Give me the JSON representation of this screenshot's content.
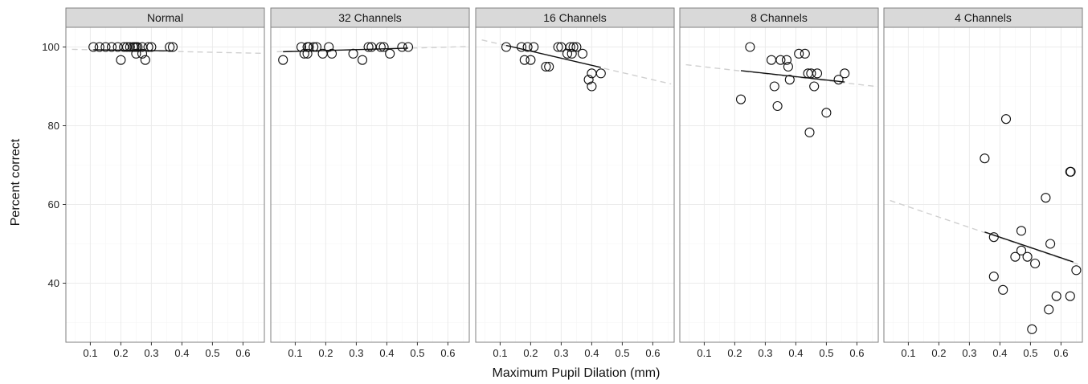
{
  "chart_data": {
    "type": "scatter",
    "xlabel": "Maximum Pupil Dilation (mm)",
    "ylabel": "Percent correct",
    "xlim": [
      0.02,
      0.67
    ],
    "ylim": [
      25,
      105
    ],
    "x_ticks": [
      "0.1",
      "0.2",
      "0.3",
      "0.4",
      "0.5",
      "0.6"
    ],
    "y_ticks": [
      "40",
      "60",
      "80",
      "100"
    ],
    "grid": true,
    "facets": [
      {
        "label": "Normal",
        "points": [
          [
            0.11,
            100
          ],
          [
            0.13,
            100
          ],
          [
            0.15,
            100
          ],
          [
            0.17,
            100
          ],
          [
            0.19,
            100
          ],
          [
            0.21,
            100
          ],
          [
            0.22,
            100
          ],
          [
            0.23,
            100
          ],
          [
            0.24,
            100
          ],
          [
            0.245,
            100
          ],
          [
            0.25,
            100
          ],
          [
            0.255,
            100
          ],
          [
            0.27,
            100
          ],
          [
            0.29,
            100
          ],
          [
            0.3,
            100
          ],
          [
            0.36,
            100
          ],
          [
            0.37,
            100
          ],
          [
            0.2,
            96.7
          ],
          [
            0.25,
            98.3
          ],
          [
            0.27,
            98.3
          ],
          [
            0.28,
            96.7
          ]
        ],
        "fit": {
          "x0": 0.11,
          "y0": 99.3,
          "x1": 0.37,
          "y1": 99.0
        },
        "extension": {
          "x0": 0.04,
          "y0": 99.4,
          "x1": 0.66,
          "y1": 98.4
        }
      },
      {
        "label": "32 Channels",
        "points": [
          [
            0.06,
            96.7
          ],
          [
            0.12,
            100
          ],
          [
            0.13,
            98.3
          ],
          [
            0.14,
            98.3
          ],
          [
            0.14,
            100
          ],
          [
            0.145,
            100
          ],
          [
            0.16,
            100
          ],
          [
            0.17,
            100
          ],
          [
            0.19,
            98.3
          ],
          [
            0.21,
            100
          ],
          [
            0.22,
            98.3
          ],
          [
            0.29,
            98.3
          ],
          [
            0.32,
            96.7
          ],
          [
            0.34,
            100
          ],
          [
            0.35,
            100
          ],
          [
            0.38,
            100
          ],
          [
            0.39,
            100
          ],
          [
            0.41,
            98.3
          ],
          [
            0.45,
            100
          ],
          [
            0.47,
            100
          ]
        ],
        "fit": {
          "x0": 0.06,
          "y0": 98.8,
          "x1": 0.47,
          "y1": 99.7
        },
        "extension": {
          "x0": 0.04,
          "y0": 98.8,
          "x1": 0.66,
          "y1": 100.1
        }
      },
      {
        "label": "16 Channels",
        "points": [
          [
            0.12,
            100
          ],
          [
            0.17,
            100
          ],
          [
            0.18,
            96.7
          ],
          [
            0.19,
            100
          ],
          [
            0.2,
            96.7
          ],
          [
            0.21,
            100
          ],
          [
            0.25,
            95
          ],
          [
            0.26,
            95
          ],
          [
            0.29,
            100
          ],
          [
            0.3,
            100
          ],
          [
            0.32,
            98.3
          ],
          [
            0.33,
            100
          ],
          [
            0.335,
            98.3
          ],
          [
            0.34,
            100
          ],
          [
            0.35,
            100
          ],
          [
            0.37,
            98.3
          ],
          [
            0.39,
            91.7
          ],
          [
            0.4,
            90
          ],
          [
            0.4,
            93.3
          ],
          [
            0.43,
            93.3
          ]
        ],
        "fit": {
          "x0": 0.12,
          "y0": 100.4,
          "x1": 0.43,
          "y1": 94.8
        },
        "extension": {
          "x0": 0.04,
          "y0": 101.8,
          "x1": 0.66,
          "y1": 90.6
        }
      },
      {
        "label": "8 Channels",
        "points": [
          [
            0.22,
            86.7
          ],
          [
            0.25,
            100
          ],
          [
            0.32,
            96.7
          ],
          [
            0.33,
            90
          ],
          [
            0.34,
            85
          ],
          [
            0.35,
            96.7
          ],
          [
            0.37,
            96.7
          ],
          [
            0.375,
            95
          ],
          [
            0.38,
            91.7
          ],
          [
            0.41,
            98.3
          ],
          [
            0.43,
            98.3
          ],
          [
            0.44,
            93.3
          ],
          [
            0.445,
            78.3
          ],
          [
            0.45,
            93.3
          ],
          [
            0.46,
            90
          ],
          [
            0.47,
            93.3
          ],
          [
            0.5,
            83.3
          ],
          [
            0.54,
            91.7
          ],
          [
            0.56,
            93.3
          ]
        ],
        "fit": {
          "x0": 0.22,
          "y0": 94.0,
          "x1": 0.56,
          "y1": 91.1
        },
        "extension": {
          "x0": 0.04,
          "y0": 95.5,
          "x1": 0.66,
          "y1": 90.0
        }
      },
      {
        "label": "4 Channels",
        "points": [
          [
            0.35,
            71.7
          ],
          [
            0.38,
            51.7
          ],
          [
            0.38,
            41.7
          ],
          [
            0.41,
            38.3
          ],
          [
            0.42,
            81.7
          ],
          [
            0.45,
            46.7
          ],
          [
            0.47,
            53.3
          ],
          [
            0.47,
            48.3
          ],
          [
            0.49,
            46.7
          ],
          [
            0.505,
            28.3
          ],
          [
            0.515,
            45
          ],
          [
            0.55,
            61.7
          ],
          [
            0.56,
            33.3
          ],
          [
            0.565,
            50
          ],
          [
            0.585,
            36.7
          ],
          [
            0.63,
            68.3
          ],
          [
            0.632,
            68.3
          ],
          [
            0.63,
            36.7
          ],
          [
            0.65,
            43.3
          ]
        ],
        "fit": {
          "x0": 0.35,
          "y0": 53.0,
          "x1": 0.64,
          "y1": 45.4
        },
        "extension": {
          "x0": 0.04,
          "y0": 61.0,
          "x1": 0.66,
          "y1": 44.7
        }
      }
    ]
  }
}
